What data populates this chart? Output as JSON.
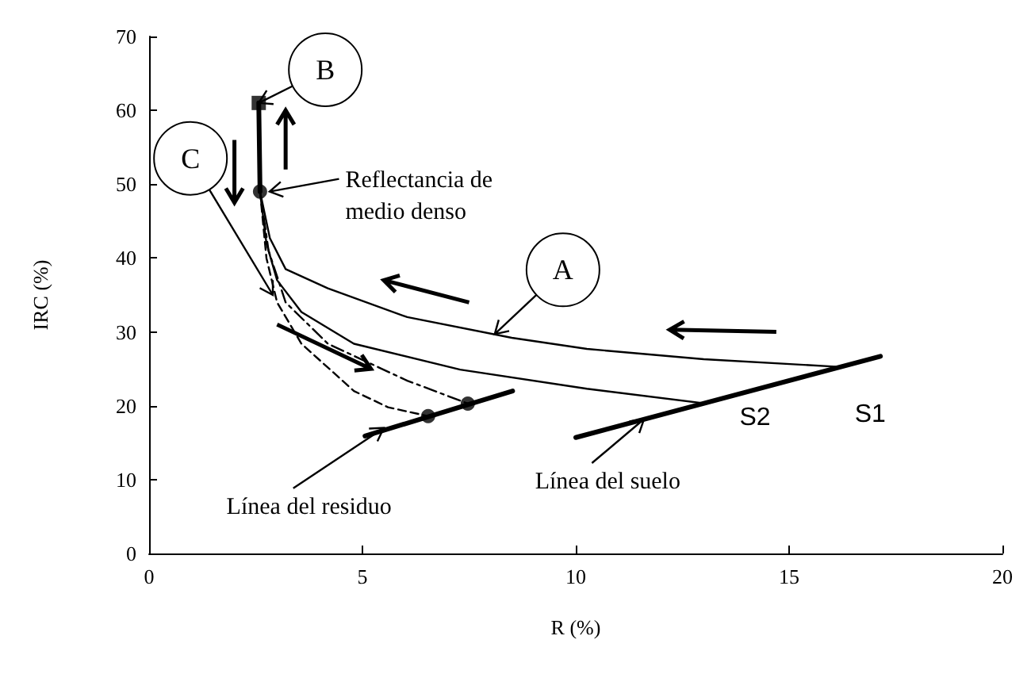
{
  "chart_data": {
    "type": "line",
    "xlabel": "R (%)",
    "ylabel": "IRC (%)",
    "xlim": [
      0,
      20
    ],
    "xticks": [
      0,
      5,
      10,
      15,
      20
    ],
    "ylim": [
      0,
      70
    ],
    "yticks": [
      0,
      10,
      20,
      30,
      40,
      50,
      60,
      70
    ],
    "grid": false,
    "series": [
      {
        "color": "#000000",
        "line_style": "solid",
        "marker": "none",
        "x": [
          2.57,
          2.6
        ],
        "values": [
          61,
          49
        ]
      },
      {
        "color": "#000000",
        "line_style": "solid",
        "marker": "none",
        "x": [
          2.6,
          2.83,
          3.2,
          4.19,
          6.05,
          8.5,
          10.26,
          13,
          16.08
        ],
        "values": [
          49,
          42.7,
          38.5,
          35.9,
          32,
          29.2,
          27.7,
          26.3,
          25.3
        ]
      },
      {
        "color": "#000000",
        "line_style": "solid",
        "marker": "none",
        "x": [
          2.6,
          2.75,
          3.0,
          3.57,
          4.8,
          7.29,
          10.26,
          13.05
        ],
        "values": [
          49,
          42,
          37,
          32.7,
          28.4,
          24.9,
          22.3,
          20.3
        ]
      },
      {
        "color": "#000000",
        "line_style": "dashed",
        "marker": "none",
        "x": [
          2.6,
          2.75,
          3.0,
          3.57,
          4.8,
          5.6,
          6.54
        ],
        "values": [
          49,
          40,
          34,
          28.4,
          22,
          19.8,
          18.6
        ]
      },
      {
        "color": "#000000",
        "line_style": "dashdot",
        "marker": "none",
        "x": [
          2.6,
          2.8,
          3.2,
          4.19,
          6.05,
          7.47
        ],
        "values": [
          49,
          41,
          34,
          28.4,
          23.4,
          20.3
        ]
      },
      {
        "color": "#000000",
        "line_style": "solid",
        "marker": "none",
        "x": [
          5.06,
          8.52
        ],
        "values": [
          15.9,
          22
        ]
      },
      {
        "color": "#000000",
        "line_style": "solid",
        "marker": "none",
        "x": [
          10.0,
          17.14
        ],
        "values": [
          15.7,
          26.7
        ]
      },
      {
        "type": "scatter",
        "color": "#000000",
        "marker": "square",
        "x": [
          2.57
        ],
        "values": [
          61
        ]
      },
      {
        "type": "scatter",
        "color": "#000000",
        "marker": "circle",
        "x": [
          2.6,
          6.54,
          7.47
        ],
        "values": [
          49,
          18.6,
          20.3
        ]
      }
    ],
    "annotations": [
      {
        "text": "B",
        "x": 2.57,
        "y": 61
      },
      {
        "text": "Reflectancia de medio denso",
        "x": 2.6,
        "y": 49
      },
      {
        "text": "C",
        "x": 2.9,
        "y": 35
      },
      {
        "text": "A",
        "x": 8.1,
        "y": 29.7
      },
      {
        "text": "S1",
        "x": 16.08,
        "y": 25.3
      },
      {
        "text": "S2",
        "x": 13.05,
        "y": 20.3
      },
      {
        "text": "Línea del suelo",
        "x": 11.6,
        "y": 18.2
      },
      {
        "text": "Línea del residuo",
        "x": 5.5,
        "y": 17
      }
    ]
  }
}
